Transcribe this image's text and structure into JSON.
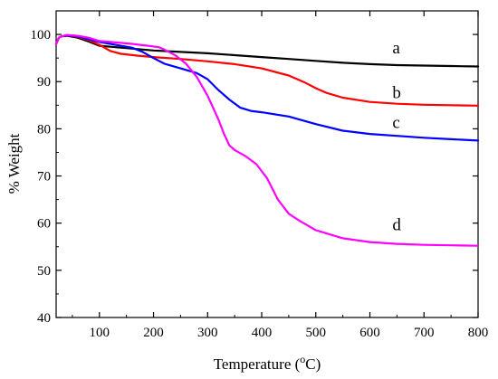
{
  "chart_data": {
    "type": "line",
    "title": "",
    "xlabel_prefix": "Temperature (",
    "xlabel_sup": "o",
    "xlabel_suffix": "C)",
    "ylabel": "% Weight",
    "xlim": [
      20,
      800
    ],
    "ylim": [
      40,
      105
    ],
    "xticks": [
      100,
      200,
      300,
      400,
      500,
      600,
      700,
      800
    ],
    "yticks": [
      40,
      50,
      60,
      70,
      80,
      90,
      100
    ],
    "grid": false,
    "series": [
      {
        "name": "a",
        "color": "#000000",
        "label_at": [
          650,
          96
        ],
        "x": [
          20,
          25,
          30,
          40,
          60,
          80,
          100,
          150,
          200,
          250,
          300,
          350,
          400,
          450,
          500,
          550,
          600,
          650,
          700,
          750,
          800
        ],
        "y": [
          98.0,
          99.3,
          99.6,
          99.7,
          99.3,
          98.5,
          97.6,
          97.1,
          96.6,
          96.3,
          96.0,
          95.6,
          95.2,
          94.8,
          94.4,
          94.0,
          93.7,
          93.5,
          93.4,
          93.3,
          93.2
        ]
      },
      {
        "name": "b",
        "color": "#ff0000",
        "label_at": [
          650,
          86.5
        ],
        "x": [
          20,
          25,
          30,
          40,
          60,
          80,
          100,
          120,
          140,
          170,
          200,
          250,
          300,
          350,
          400,
          450,
          480,
          500,
          520,
          550,
          600,
          650,
          700,
          750,
          800
        ],
        "y": [
          98.0,
          99.3,
          99.6,
          99.8,
          99.5,
          98.8,
          97.8,
          96.5,
          95.9,
          95.5,
          95.2,
          94.8,
          94.3,
          93.7,
          92.8,
          91.3,
          89.8,
          88.6,
          87.6,
          86.6,
          85.7,
          85.3,
          85.1,
          85.0,
          84.9
        ]
      },
      {
        "name": "c",
        "color": "#0000ff",
        "label_at": [
          650,
          80.2
        ],
        "x": [
          20,
          25,
          30,
          40,
          60,
          80,
          100,
          130,
          160,
          180,
          200,
          220,
          250,
          280,
          300,
          320,
          340,
          360,
          380,
          400,
          450,
          500,
          550,
          600,
          650,
          700,
          750,
          800
        ],
        "y": [
          98.0,
          99.3,
          99.6,
          99.8,
          99.6,
          99.0,
          98.4,
          97.8,
          97.2,
          96.3,
          95.0,
          93.8,
          92.8,
          91.8,
          90.5,
          88.2,
          86.2,
          84.5,
          83.8,
          83.5,
          82.6,
          81.0,
          79.6,
          78.9,
          78.5,
          78.1,
          77.8,
          77.5
        ]
      },
      {
        "name": "d",
        "color": "#ff00ff",
        "label_at": [
          650,
          58.5
        ],
        "x": [
          20,
          25,
          30,
          40,
          60,
          80,
          100,
          130,
          160,
          190,
          210,
          220,
          240,
          260,
          280,
          300,
          320,
          330,
          340,
          350,
          370,
          390,
          410,
          430,
          450,
          470,
          500,
          550,
          600,
          650,
          700,
          750,
          800
        ],
        "y": [
          98.0,
          99.3,
          99.6,
          99.9,
          99.7,
          99.3,
          98.6,
          98.3,
          98.0,
          97.6,
          97.3,
          96.8,
          95.6,
          93.8,
          91.0,
          87.0,
          82.0,
          79.0,
          76.5,
          75.5,
          74.2,
          72.5,
          69.5,
          65.0,
          62.0,
          60.5,
          58.5,
          56.8,
          56.0,
          55.6,
          55.4,
          55.3,
          55.2
        ]
      }
    ]
  }
}
